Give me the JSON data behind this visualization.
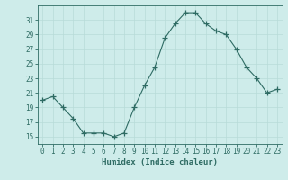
{
  "x": [
    0,
    1,
    2,
    3,
    4,
    5,
    6,
    7,
    8,
    9,
    10,
    11,
    12,
    13,
    14,
    15,
    16,
    17,
    18,
    19,
    20,
    21,
    22,
    23
  ],
  "y": [
    20,
    20.5,
    19,
    17.5,
    15.5,
    15.5,
    15.5,
    15,
    15.5,
    19,
    22,
    24.5,
    28.5,
    30.5,
    32,
    32,
    30.5,
    29.5,
    29,
    27,
    24.5,
    23,
    21,
    21.5
  ],
  "line_color": "#2e6b63",
  "marker": "P",
  "marker_size": 3.0,
  "bg_color": "#ceecea",
  "grid_color": "#b8dbd8",
  "xlabel": "Humidex (Indice chaleur)",
  "xlim": [
    -0.5,
    23.5
  ],
  "ylim": [
    14.0,
    33.0
  ],
  "yticks": [
    15,
    17,
    19,
    21,
    23,
    25,
    27,
    29,
    31
  ],
  "xtick_labels": [
    "0",
    "1",
    "2",
    "3",
    "4",
    "5",
    "6",
    "7",
    "8",
    "9",
    "10",
    "11",
    "12",
    "13",
    "14",
    "15",
    "16",
    "17",
    "18",
    "19",
    "20",
    "21",
    "22",
    "23"
  ],
  "tick_color": "#2e6b63",
  "label_color": "#2e6b63",
  "spine_color": "#2e6b63"
}
